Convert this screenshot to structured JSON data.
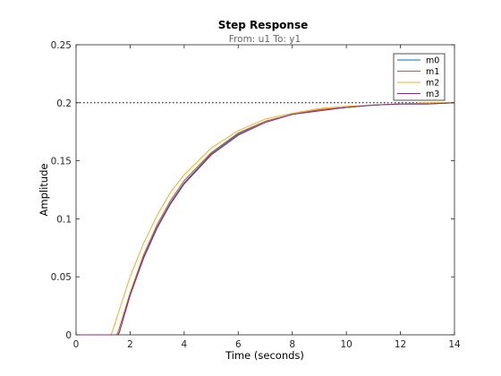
{
  "chart_data": {
    "type": "line",
    "title": "Step Response",
    "subtitle": "From: u1  To: y1",
    "xlabel": "Time (seconds)",
    "ylabel": "Amplitude",
    "xlim": [
      0,
      14
    ],
    "ylim": [
      0,
      0.25
    ],
    "xticks": [
      "0",
      "2",
      "4",
      "6",
      "8",
      "10",
      "12",
      "14"
    ],
    "yticks": [
      "0",
      "0.05",
      "0.1",
      "0.15",
      "0.2",
      "0.25"
    ],
    "grid": false,
    "legend": "top-right",
    "steady_state": 0.2,
    "series": [
      {
        "name": "m0",
        "color": "#0072BD",
        "x": [
          0,
          1.55,
          1.6,
          2,
          2.5,
          3,
          3.5,
          4,
          5,
          6,
          7,
          8,
          9,
          10,
          11,
          12,
          13,
          14
        ],
        "y": [
          0,
          0,
          0.002,
          0.034,
          0.067,
          0.093,
          0.114,
          0.131,
          0.156,
          0.173,
          0.184,
          0.19,
          0.194,
          0.196,
          0.198,
          0.199,
          0.199,
          0.2
        ]
      },
      {
        "name": "m1",
        "color": "#D95319",
        "x": [
          0,
          1.5,
          1.55,
          2,
          2.5,
          3,
          3.5,
          4,
          5,
          6,
          7,
          8,
          9,
          10,
          11,
          12,
          13,
          14
        ],
        "y": [
          0,
          0,
          0.002,
          0.036,
          0.069,
          0.095,
          0.116,
          0.133,
          0.157,
          0.174,
          0.184,
          0.19,
          0.194,
          0.196,
          0.198,
          0.199,
          0.199,
          0.2
        ]
      },
      {
        "name": "m2",
        "color": "#EDB120",
        "x": [
          0,
          1.3,
          1.4,
          2,
          2.5,
          3,
          3.5,
          4,
          5,
          6,
          7,
          8,
          9,
          10,
          11,
          12,
          13,
          14
        ],
        "y": [
          0,
          0,
          0.007,
          0.05,
          0.079,
          0.103,
          0.123,
          0.138,
          0.161,
          0.176,
          0.186,
          0.191,
          0.195,
          0.197,
          0.198,
          0.199,
          0.2,
          0.2
        ]
      },
      {
        "name": "m3",
        "color": "#7E2F8E",
        "x": [
          0,
          1.55,
          1.6,
          2,
          2.5,
          3,
          3.5,
          4,
          5,
          6,
          7,
          8,
          9,
          10,
          11,
          12,
          13,
          14
        ],
        "y": [
          0,
          0,
          0.002,
          0.034,
          0.066,
          0.092,
          0.113,
          0.13,
          0.155,
          0.172,
          0.183,
          0.19,
          0.193,
          0.196,
          0.198,
          0.199,
          0.199,
          0.2
        ]
      }
    ]
  }
}
